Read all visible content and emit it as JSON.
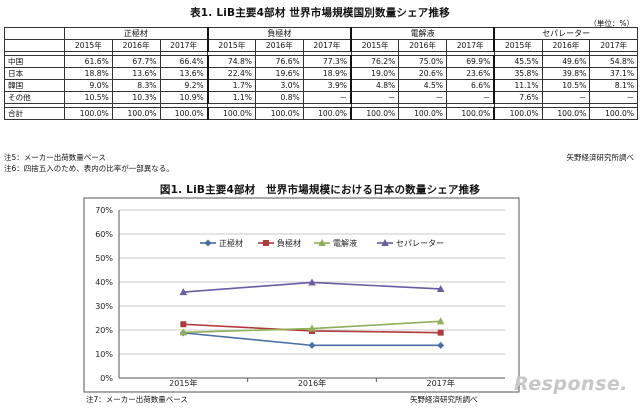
{
  "table": {
    "title": "表1. LiB主要4部材 世界市場規模国別数量シェア推移",
    "unit": "（単位：%）",
    "groups": [
      "正極材",
      "負極材",
      "電解液",
      "セパレーター"
    ],
    "years": [
      "2015年",
      "2016年",
      "2017年"
    ],
    "rows": [
      {
        "label": "中国",
        "values": [
          "61.6%",
          "67.7%",
          "66.4%",
          "74.8%",
          "76.6%",
          "77.3%",
          "76.2%",
          "75.0%",
          "69.9%",
          "45.5%",
          "49.6%",
          "54.8%"
        ]
      },
      {
        "label": "日本",
        "values": [
          "18.8%",
          "13.6%",
          "13.6%",
          "22.4%",
          "19.6%",
          "18.9%",
          "19.0%",
          "20.6%",
          "23.6%",
          "35.8%",
          "39.8%",
          "37.1%"
        ]
      },
      {
        "label": "韓国",
        "values": [
          "9.0%",
          "8.3%",
          "9.2%",
          "1.7%",
          "3.0%",
          "3.9%",
          "4.8%",
          "4.5%",
          "6.6%",
          "11.1%",
          "10.5%",
          "8.1%"
        ]
      },
      {
        "label": "その他",
        "values": [
          "10.5%",
          "10.3%",
          "10.9%",
          "1.1%",
          "0.8%",
          "－",
          "－",
          "－",
          "－",
          "7.6%",
          "－",
          "－"
        ]
      }
    ],
    "total": {
      "label": "合計",
      "values": [
        "100.0%",
        "100.0%",
        "100.0%",
        "100.0%",
        "100.0%",
        "100.0%",
        "100.0%",
        "100.0%",
        "100.0%",
        "100.0%",
        "100.0%",
        "100.0%"
      ]
    },
    "note1": "注5：メーカー出荷数量ベース",
    "note2": "注6：四捨五入のため、表内の比率が一部異なる。",
    "source": "矢野経済研究所調べ"
  },
  "chart_title": "図1. LiB主要4部材　世界市場規模における日本の数量シェア推移",
  "chart_note": "注7：メーカー出荷数量ベース",
  "chart_source": "矢野経済研究所調べ",
  "logo_text": "Response.",
  "chart_data": {
    "type": "line",
    "title": "図1. LiB主要4部材　世界市場規模における日本の数量シェア推移",
    "categories": [
      "2015年",
      "2016年",
      "2017年"
    ],
    "ylim": [
      0,
      70
    ],
    "yticks": [
      "0%",
      "10%",
      "20%",
      "30%",
      "40%",
      "50%",
      "60%",
      "70%"
    ],
    "grid": true,
    "legend": "top-center",
    "series": [
      {
        "name": "正極材",
        "values": [
          18.8,
          13.6,
          13.6
        ],
        "color": "#4a6fa5",
        "marker": "diamond"
      },
      {
        "name": "負極材",
        "values": [
          22.4,
          19.6,
          18.9
        ],
        "color": "#b03a3a",
        "marker": "square"
      },
      {
        "name": "電解液",
        "values": [
          19.0,
          20.6,
          23.6
        ],
        "color": "#8fae55",
        "marker": "triangle"
      },
      {
        "name": "セパレーター",
        "values": [
          35.8,
          39.8,
          37.1
        ],
        "color": "#6b5ca5",
        "marker": "triangle"
      }
    ]
  }
}
